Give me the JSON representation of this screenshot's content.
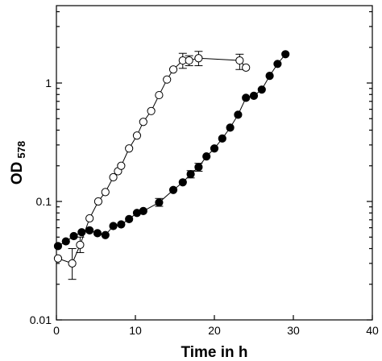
{
  "chart_data": {
    "type": "scatter",
    "xlabel": "Time in h",
    "ylabel_main": "OD",
    "ylabel_sub": "578",
    "xlim": [
      0,
      40
    ],
    "ylim": [
      0.01,
      4.5
    ],
    "yscale": "log",
    "x_ticks": [
      0,
      10,
      20,
      30,
      40
    ],
    "x_tick_labels": [
      "0",
      "10",
      "20",
      "30",
      "40"
    ],
    "y_ticks": [
      0.01,
      0.1,
      1
    ],
    "y_tick_labels": [
      "0.01",
      "0.1",
      "1"
    ],
    "grid": false,
    "legend": "none",
    "series": [
      {
        "marker": "open-circle",
        "color": "#000000",
        "points": [
          {
            "x": 0.2,
            "y": 0.033
          },
          {
            "x": 2.0,
            "y": 0.03,
            "err": [
              0.022,
              0.04
            ]
          },
          {
            "x": 3.0,
            "y": 0.043,
            "err": [
              0.037,
              0.05
            ]
          },
          {
            "x": 4.2,
            "y": 0.072
          },
          {
            "x": 5.3,
            "y": 0.1
          },
          {
            "x": 6.2,
            "y": 0.12
          },
          {
            "x": 7.2,
            "y": 0.16
          },
          {
            "x": 7.8,
            "y": 0.18
          },
          {
            "x": 8.2,
            "y": 0.2
          },
          {
            "x": 9.2,
            "y": 0.28
          },
          {
            "x": 10.2,
            "y": 0.36
          },
          {
            "x": 11.0,
            "y": 0.47
          },
          {
            "x": 12.0,
            "y": 0.58
          },
          {
            "x": 13.0,
            "y": 0.79
          },
          {
            "x": 14.0,
            "y": 1.07
          },
          {
            "x": 14.8,
            "y": 1.3
          },
          {
            "x": 16.0,
            "y": 1.55,
            "err": [
              1.33,
              1.78
            ]
          },
          {
            "x": 16.8,
            "y": 1.55,
            "err": [
              1.4,
              1.7
            ]
          },
          {
            "x": 18.0,
            "y": 1.62,
            "err": [
              1.4,
              1.85
            ]
          },
          {
            "x": 23.2,
            "y": 1.55,
            "err": [
              1.3,
              1.75
            ]
          },
          {
            "x": 24.0,
            "y": 1.35
          }
        ]
      },
      {
        "marker": "filled-circle",
        "color": "#000000",
        "points": [
          {
            "x": 0.2,
            "y": 0.042
          },
          {
            "x": 1.2,
            "y": 0.046
          },
          {
            "x": 2.2,
            "y": 0.051
          },
          {
            "x": 3.2,
            "y": 0.055
          },
          {
            "x": 4.2,
            "y": 0.057
          },
          {
            "x": 5.2,
            "y": 0.054
          },
          {
            "x": 6.2,
            "y": 0.052
          },
          {
            "x": 7.2,
            "y": 0.062
          },
          {
            "x": 8.2,
            "y": 0.064
          },
          {
            "x": 9.2,
            "y": 0.071
          },
          {
            "x": 10.2,
            "y": 0.08
          },
          {
            "x": 11.0,
            "y": 0.083
          },
          {
            "x": 13.0,
            "y": 0.098,
            "err": [
              0.091,
              0.106
            ]
          },
          {
            "x": 14.8,
            "y": 0.125
          },
          {
            "x": 16.0,
            "y": 0.145
          },
          {
            "x": 17.0,
            "y": 0.17,
            "err": [
              0.158,
              0.182
            ]
          },
          {
            "x": 18.0,
            "y": 0.195,
            "err": [
              0.18,
              0.21
            ]
          },
          {
            "x": 19.0,
            "y": 0.24
          },
          {
            "x": 20.0,
            "y": 0.28
          },
          {
            "x": 21.0,
            "y": 0.34
          },
          {
            "x": 22.0,
            "y": 0.42
          },
          {
            "x": 23.0,
            "y": 0.54
          },
          {
            "x": 24.0,
            "y": 0.75
          },
          {
            "x": 25.0,
            "y": 0.78
          },
          {
            "x": 26.0,
            "y": 0.88
          },
          {
            "x": 27.0,
            "y": 1.15
          },
          {
            "x": 28.0,
            "y": 1.45
          },
          {
            "x": 29.0,
            "y": 1.75
          }
        ]
      }
    ]
  }
}
